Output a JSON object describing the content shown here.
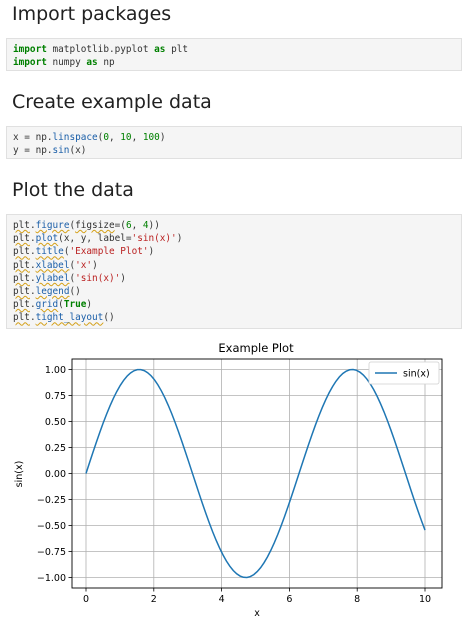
{
  "cells": [
    {
      "heading": "Import packages",
      "code": [
        [
          {
            "t": "import",
            "c": "kw"
          },
          {
            "t": " matplotlib.pyplot "
          },
          {
            "t": "as",
            "c": "kw"
          },
          {
            "t": " plt"
          }
        ],
        [
          {
            "t": "import",
            "c": "kw"
          },
          {
            "t": " numpy "
          },
          {
            "t": "as",
            "c": "kw"
          },
          {
            "t": " np"
          }
        ]
      ]
    },
    {
      "heading": "Create example data",
      "code": [
        [
          {
            "t": "x = np."
          },
          {
            "t": "linspace",
            "c": "fn"
          },
          {
            "t": "("
          },
          {
            "t": "0",
            "c": "num"
          },
          {
            "t": ", "
          },
          {
            "t": "10",
            "c": "num"
          },
          {
            "t": ", "
          },
          {
            "t": "100",
            "c": "num"
          },
          {
            "t": ")"
          }
        ],
        [
          {
            "t": "y = np."
          },
          {
            "t": "sin",
            "c": "fn"
          },
          {
            "t": "(x)"
          }
        ]
      ]
    },
    {
      "heading": "Plot the data",
      "code": [
        [
          {
            "t": "plt",
            "c": "sq"
          },
          {
            "t": "."
          },
          {
            "t": "figure",
            "c": "fn sq"
          },
          {
            "t": "("
          },
          {
            "t": "figsize",
            "c": "sq"
          },
          {
            "t": "=("
          },
          {
            "t": "6",
            "c": "num"
          },
          {
            "t": ", "
          },
          {
            "t": "4",
            "c": "num"
          },
          {
            "t": "))"
          }
        ],
        [
          {
            "t": "plt",
            "c": "sq"
          },
          {
            "t": "."
          },
          {
            "t": "plot",
            "c": "fn sq"
          },
          {
            "t": "(x, y, label="
          },
          {
            "t": "'sin(x)'",
            "c": "str"
          },
          {
            "t": ")"
          }
        ],
        [
          {
            "t": "plt",
            "c": "sq"
          },
          {
            "t": "."
          },
          {
            "t": "title",
            "c": "fn sq"
          },
          {
            "t": "("
          },
          {
            "t": "'Example Plot'",
            "c": "str"
          },
          {
            "t": ")"
          }
        ],
        [
          {
            "t": "plt",
            "c": "sq"
          },
          {
            "t": "."
          },
          {
            "t": "xlabel",
            "c": "fn sq"
          },
          {
            "t": "("
          },
          {
            "t": "'x'",
            "c": "str"
          },
          {
            "t": ")"
          }
        ],
        [
          {
            "t": "plt",
            "c": "sq"
          },
          {
            "t": "."
          },
          {
            "t": "ylabel",
            "c": "fn sq"
          },
          {
            "t": "("
          },
          {
            "t": "'sin(x)'",
            "c": "str"
          },
          {
            "t": ")"
          }
        ],
        [
          {
            "t": "plt",
            "c": "sq"
          },
          {
            "t": "."
          },
          {
            "t": "legend",
            "c": "fn sq"
          },
          {
            "t": "()"
          }
        ],
        [
          {
            "t": "plt",
            "c": "sq"
          },
          {
            "t": "."
          },
          {
            "t": "grid",
            "c": "fn sq"
          },
          {
            "t": "("
          },
          {
            "t": "True",
            "c": "kw"
          },
          {
            "t": ")"
          }
        ],
        [
          {
            "t": "plt",
            "c": "sq"
          },
          {
            "t": "."
          },
          {
            "t": "tight_layout",
            "c": "fn sq"
          },
          {
            "t": "()"
          }
        ]
      ]
    }
  ],
  "chart_data": {
    "type": "line",
    "title": "Example Plot",
    "xlabel": "x",
    "ylabel": "sin(x)",
    "xlim": [
      0,
      10
    ],
    "ylim": [
      -1.0,
      1.0
    ],
    "xticks": [
      0,
      2,
      4,
      6,
      8,
      10
    ],
    "yticks": [
      -1.0,
      -0.75,
      -0.5,
      -0.25,
      0.0,
      0.25,
      0.5,
      0.75,
      1.0
    ],
    "grid": true,
    "legend_position": "top-right",
    "series": [
      {
        "name": "sin(x)",
        "color": "#1f77b4",
        "function": "sin",
        "x_start": 0,
        "x_end": 10,
        "num_points": 100
      }
    ]
  }
}
